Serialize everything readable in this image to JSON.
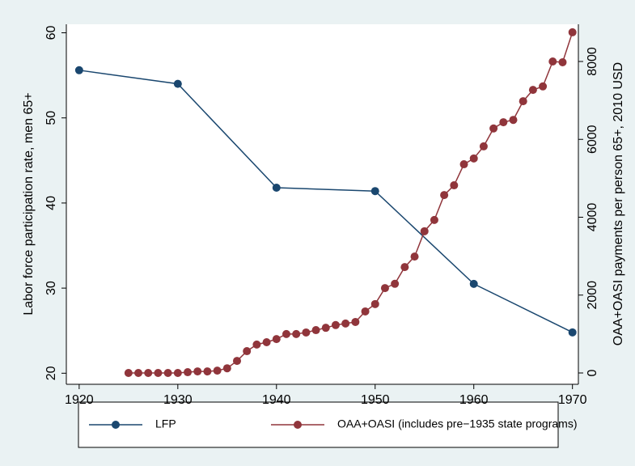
{
  "chart_data": {
    "type": "line",
    "ylabel": "Labor force participation rate, men 65+",
    "y2label": "OAA+OASI payments per person 65+, 2010 USD",
    "xlim": [
      1918.7,
      1970.6
    ],
    "xticks": [
      1920,
      1930,
      1940,
      1950,
      1960,
      1970
    ],
    "ylim": [
      18.7,
      61
    ],
    "yticks": [
      20,
      30,
      40,
      50,
      60
    ],
    "y2lim": [
      -291,
      8956
    ],
    "y2ticks": [
      0,
      2000,
      4000,
      6000,
      8000
    ],
    "series": [
      {
        "name": "LFP",
        "color": "#1a476f",
        "x": [
          1920,
          1930,
          1940,
          1950,
          1960,
          1970
        ],
        "values": [
          55.6,
          54.0,
          41.8,
          41.4,
          30.5,
          24.8
        ]
      },
      {
        "name": "OAA+OASI (includes pre−1935 state programs)",
        "color": "#90353b",
        "axis": "y2",
        "x": [
          1925,
          1926,
          1927,
          1928,
          1929,
          1930,
          1931,
          1932,
          1933,
          1934,
          1935,
          1936,
          1937,
          1938,
          1939,
          1940,
          1941,
          1942,
          1943,
          1944,
          1945,
          1946,
          1947,
          1948,
          1949,
          1950,
          1951,
          1952,
          1953,
          1954,
          1955,
          1956,
          1957,
          1958,
          1959,
          1960,
          1961,
          1962,
          1963,
          1964,
          1965,
          1966,
          1967,
          1968,
          1969,
          1970
        ],
        "values": [
          0,
          0,
          0,
          0,
          0,
          0,
          20,
          40,
          40,
          60,
          120,
          310,
          560,
          730,
          790,
          870,
          1000,
          1000,
          1040,
          1100,
          1160,
          1230,
          1270,
          1310,
          1580,
          1770,
          2180,
          2290,
          2720,
          2990,
          3640,
          3930,
          4570,
          4820,
          5360,
          5510,
          5820,
          6280,
          6440,
          6500,
          6980,
          7270,
          7360,
          8000,
          7980,
          8750
        ]
      }
    ]
  }
}
